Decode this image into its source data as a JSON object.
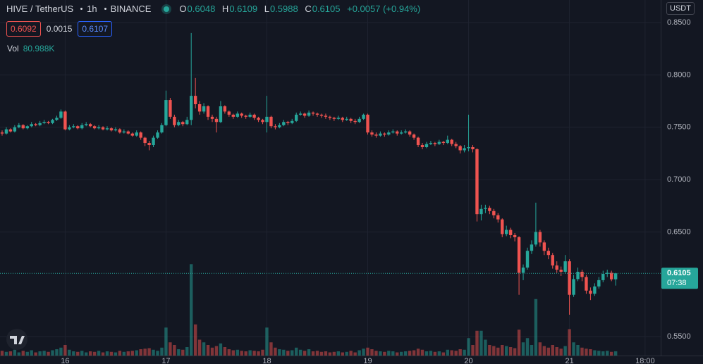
{
  "symbol": "HIVE / TetherUS",
  "interval": "1h",
  "exchange": "BINANCE",
  "ohlc_labels": [
    "O",
    "H",
    "L",
    "C"
  ],
  "change": "+0.0057 (+0.94%)",
  "bid": "0.6092",
  "spread": "0.0015",
  "ask": "0.6107",
  "currency": "USDT",
  "countdown": "07:38",
  "chart_data": {
    "type": "candlestick",
    "up_color": "#26a69a",
    "down_color": "#ef5350",
    "ylim": [
      0.532,
      0.8715
    ],
    "yticks": [
      {
        "value": 0.55,
        "label": "0.5500"
      },
      {
        "value": 0.65,
        "label": "0.6500"
      },
      {
        "value": 0.7,
        "label": "0.7000"
      },
      {
        "value": 0.75,
        "label": "0.7500"
      },
      {
        "value": 0.8,
        "label": "0.8000"
      },
      {
        "value": 0.85,
        "label": "0.8500"
      }
    ],
    "grid": true,
    "categories": [
      null,
      null,
      null,
      null,
      null,
      null,
      null,
      null,
      null,
      null,
      null,
      null,
      null,
      null,
      null,
      "16",
      null,
      null,
      null,
      null,
      null,
      null,
      null,
      null,
      null,
      null,
      null,
      null,
      null,
      null,
      null,
      null,
      null,
      null,
      null,
      null,
      null,
      null,
      null,
      "17",
      null,
      null,
      null,
      null,
      null,
      null,
      null,
      null,
      null,
      null,
      null,
      null,
      null,
      null,
      null,
      null,
      null,
      null,
      null,
      null,
      null,
      null,
      null,
      "18",
      null,
      null,
      null,
      null,
      null,
      null,
      null,
      null,
      null,
      null,
      null,
      null,
      null,
      null,
      null,
      null,
      null,
      null,
      null,
      null,
      null,
      null,
      null,
      "19",
      null,
      null,
      null,
      null,
      null,
      null,
      null,
      null,
      null,
      null,
      null,
      null,
      null,
      null,
      null,
      null,
      null,
      null,
      null,
      null,
      null,
      null,
      null,
      "20",
      null,
      null,
      null,
      null,
      null,
      null,
      null,
      null,
      null,
      null,
      null,
      null,
      null,
      null,
      null,
      null,
      null,
      null,
      null,
      null,
      null,
      null,
      null,
      "21",
      null,
      null,
      null,
      null,
      null,
      null,
      null,
      null,
      null,
      null,
      null,
      null,
      null,
      null,
      null,
      null,
      null,
      "18:00"
    ],
    "candles": [
      [
        0.745,
        0.747,
        0.742,
        0.744
      ],
      [
        0.744,
        0.75,
        0.743,
        0.748
      ],
      [
        0.748,
        0.749,
        0.745,
        0.746
      ],
      [
        0.746,
        0.752,
        0.745,
        0.75
      ],
      [
        0.75,
        0.754,
        0.749,
        0.752
      ],
      [
        0.752,
        0.753,
        0.748,
        0.749
      ],
      [
        0.749,
        0.752,
        0.748,
        0.751
      ],
      [
        0.751,
        0.755,
        0.75,
        0.753
      ],
      [
        0.753,
        0.754,
        0.751,
        0.752
      ],
      [
        0.752,
        0.756,
        0.751,
        0.754
      ],
      [
        0.754,
        0.757,
        0.753,
        0.755
      ],
      [
        0.755,
        0.756,
        0.753,
        0.754
      ],
      [
        0.754,
        0.758,
        0.753,
        0.757
      ],
      [
        0.757,
        0.761,
        0.756,
        0.759
      ],
      [
        0.759,
        0.767,
        0.758,
        0.765
      ],
      [
        0.765,
        0.766,
        0.747,
        0.748
      ],
      [
        0.748,
        0.752,
        0.747,
        0.75
      ],
      [
        0.75,
        0.753,
        0.749,
        0.751
      ],
      [
        0.751,
        0.752,
        0.748,
        0.749
      ],
      [
        0.749,
        0.754,
        0.748,
        0.752
      ],
      [
        0.752,
        0.755,
        0.751,
        0.753
      ],
      [
        0.753,
        0.754,
        0.75,
        0.751
      ],
      [
        0.751,
        0.752,
        0.748,
        0.749
      ],
      [
        0.749,
        0.752,
        0.748,
        0.75
      ],
      [
        0.75,
        0.751,
        0.747,
        0.748
      ],
      [
        0.748,
        0.751,
        0.747,
        0.749
      ],
      [
        0.749,
        0.75,
        0.746,
        0.747
      ],
      [
        0.747,
        0.75,
        0.746,
        0.748
      ],
      [
        0.748,
        0.749,
        0.744,
        0.745
      ],
      [
        0.745,
        0.748,
        0.744,
        0.746
      ],
      [
        0.746,
        0.747,
        0.743,
        0.744
      ],
      [
        0.744,
        0.745,
        0.741,
        0.742
      ],
      [
        0.742,
        0.747,
        0.741,
        0.745
      ],
      [
        0.745,
        0.746,
        0.738,
        0.74
      ],
      [
        0.74,
        0.741,
        0.732,
        0.735
      ],
      [
        0.735,
        0.737,
        0.728,
        0.733
      ],
      [
        0.733,
        0.742,
        0.731,
        0.74
      ],
      [
        0.74,
        0.747,
        0.739,
        0.745
      ],
      [
        0.745,
        0.754,
        0.744,
        0.752
      ],
      [
        0.752,
        0.785,
        0.751,
        0.776
      ],
      [
        0.776,
        0.778,
        0.758,
        0.76
      ],
      [
        0.76,
        0.762,
        0.75,
        0.752
      ],
      [
        0.752,
        0.757,
        0.751,
        0.755
      ],
      [
        0.755,
        0.756,
        0.751,
        0.753
      ],
      [
        0.753,
        0.76,
        0.752,
        0.757
      ],
      [
        0.757,
        0.84,
        0.752,
        0.78
      ],
      [
        0.78,
        0.797,
        0.768,
        0.772
      ],
      [
        0.772,
        0.775,
        0.762,
        0.765
      ],
      [
        0.765,
        0.773,
        0.763,
        0.77
      ],
      [
        0.77,
        0.771,
        0.757,
        0.76
      ],
      [
        0.76,
        0.762,
        0.755,
        0.758
      ],
      [
        0.758,
        0.76,
        0.745,
        0.755
      ],
      [
        0.755,
        0.775,
        0.754,
        0.77
      ],
      [
        0.77,
        0.771,
        0.763,
        0.765
      ],
      [
        0.765,
        0.766,
        0.76,
        0.762
      ],
      [
        0.762,
        0.763,
        0.758,
        0.76
      ],
      [
        0.76,
        0.765,
        0.759,
        0.763
      ],
      [
        0.763,
        0.764,
        0.759,
        0.761
      ],
      [
        0.761,
        0.762,
        0.758,
        0.76
      ],
      [
        0.76,
        0.764,
        0.759,
        0.762
      ],
      [
        0.762,
        0.763,
        0.757,
        0.759
      ],
      [
        0.759,
        0.76,
        0.755,
        0.757
      ],
      [
        0.757,
        0.758,
        0.753,
        0.755
      ],
      [
        0.755,
        0.78,
        0.745,
        0.76
      ],
      [
        0.76,
        0.761,
        0.749,
        0.751
      ],
      [
        0.751,
        0.753,
        0.748,
        0.75
      ],
      [
        0.75,
        0.754,
        0.749,
        0.752
      ],
      [
        0.752,
        0.757,
        0.751,
        0.755
      ],
      [
        0.755,
        0.756,
        0.752,
        0.754
      ],
      [
        0.754,
        0.758,
        0.753,
        0.756
      ],
      [
        0.756,
        0.764,
        0.755,
        0.762
      ],
      [
        0.762,
        0.765,
        0.761,
        0.763
      ],
      [
        0.763,
        0.764,
        0.759,
        0.761
      ],
      [
        0.761,
        0.766,
        0.76,
        0.764
      ],
      [
        0.764,
        0.765,
        0.761,
        0.763
      ],
      [
        0.763,
        0.764,
        0.76,
        0.762
      ],
      [
        0.762,
        0.763,
        0.759,
        0.761
      ],
      [
        0.761,
        0.763,
        0.758,
        0.76
      ],
      [
        0.76,
        0.761,
        0.757,
        0.759
      ],
      [
        0.759,
        0.76,
        0.756,
        0.758
      ],
      [
        0.758,
        0.761,
        0.757,
        0.759
      ],
      [
        0.759,
        0.76,
        0.755,
        0.757
      ],
      [
        0.757,
        0.76,
        0.756,
        0.758
      ],
      [
        0.758,
        0.759,
        0.754,
        0.756
      ],
      [
        0.756,
        0.758,
        0.753,
        0.755
      ],
      [
        0.755,
        0.76,
        0.754,
        0.758
      ],
      [
        0.758,
        0.763,
        0.757,
        0.762
      ],
      [
        0.762,
        0.763,
        0.743,
        0.745
      ],
      [
        0.745,
        0.747,
        0.741,
        0.743
      ],
      [
        0.743,
        0.745,
        0.74,
        0.742
      ],
      [
        0.742,
        0.746,
        0.741,
        0.744
      ],
      [
        0.744,
        0.745,
        0.741,
        0.743
      ],
      [
        0.743,
        0.747,
        0.742,
        0.745
      ],
      [
        0.745,
        0.748,
        0.744,
        0.746
      ],
      [
        0.746,
        0.747,
        0.742,
        0.744
      ],
      [
        0.744,
        0.747,
        0.743,
        0.745
      ],
      [
        0.745,
        0.748,
        0.744,
        0.746
      ],
      [
        0.746,
        0.747,
        0.741,
        0.743
      ],
      [
        0.743,
        0.744,
        0.738,
        0.74
      ],
      [
        0.74,
        0.741,
        0.731,
        0.733
      ],
      [
        0.733,
        0.735,
        0.729,
        0.731
      ],
      [
        0.731,
        0.736,
        0.73,
        0.734
      ],
      [
        0.734,
        0.737,
        0.733,
        0.735
      ],
      [
        0.735,
        0.736,
        0.732,
        0.734
      ],
      [
        0.734,
        0.738,
        0.733,
        0.736
      ],
      [
        0.736,
        0.737,
        0.733,
        0.735
      ],
      [
        0.735,
        0.742,
        0.734,
        0.738
      ],
      [
        0.738,
        0.739,
        0.732,
        0.734
      ],
      [
        0.734,
        0.736,
        0.73,
        0.732
      ],
      [
        0.732,
        0.733,
        0.725,
        0.728
      ],
      [
        0.728,
        0.733,
        0.726,
        0.73
      ],
      [
        0.73,
        0.762,
        0.727,
        0.731
      ],
      [
        0.731,
        0.733,
        0.726,
        0.729
      ],
      [
        0.729,
        0.73,
        0.66,
        0.667
      ],
      [
        0.667,
        0.676,
        0.661,
        0.672
      ],
      [
        0.672,
        0.676,
        0.668,
        0.673
      ],
      [
        0.673,
        0.675,
        0.667,
        0.67
      ],
      [
        0.67,
        0.672,
        0.663,
        0.666
      ],
      [
        0.666,
        0.668,
        0.659,
        0.662
      ],
      [
        0.662,
        0.663,
        0.645,
        0.648
      ],
      [
        0.648,
        0.656,
        0.646,
        0.652
      ],
      [
        0.652,
        0.654,
        0.644,
        0.647
      ],
      [
        0.647,
        0.649,
        0.641,
        0.645
      ],
      [
        0.645,
        0.646,
        0.59,
        0.611
      ],
      [
        0.611,
        0.619,
        0.604,
        0.616
      ],
      [
        0.616,
        0.635,
        0.614,
        0.632
      ],
      [
        0.632,
        0.642,
        0.629,
        0.638
      ],
      [
        0.638,
        0.678,
        0.636,
        0.65
      ],
      [
        0.65,
        0.652,
        0.636,
        0.64
      ],
      [
        0.64,
        0.642,
        0.628,
        0.632
      ],
      [
        0.632,
        0.635,
        0.624,
        0.628
      ],
      [
        0.628,
        0.63,
        0.615,
        0.618
      ],
      [
        0.618,
        0.622,
        0.611,
        0.614
      ],
      [
        0.614,
        0.617,
        0.608,
        0.612
      ],
      [
        0.612,
        0.628,
        0.61,
        0.622
      ],
      [
        0.622,
        0.624,
        0.571,
        0.59
      ],
      [
        0.59,
        0.609,
        0.588,
        0.605
      ],
      [
        0.605,
        0.616,
        0.603,
        0.612
      ],
      [
        0.612,
        0.614,
        0.603,
        0.607
      ],
      [
        0.607,
        0.609,
        0.591,
        0.594
      ],
      [
        0.594,
        0.597,
        0.585,
        0.591
      ],
      [
        0.591,
        0.601,
        0.589,
        0.598
      ],
      [
        0.598,
        0.607,
        0.596,
        0.604
      ],
      [
        0.604,
        0.613,
        0.602,
        0.61
      ],
      [
        0.61,
        0.614,
        0.607,
        0.611
      ],
      [
        0.611,
        0.613,
        0.603,
        0.6048
      ],
      [
        0.6048,
        0.6109,
        0.5988,
        0.6105
      ],
      null,
      null,
      null,
      null,
      null,
      null,
      null
    ],
    "volume": {
      "name": "Vol",
      "vlim": [
        0,
        2000000
      ],
      "last_label": "80.988K",
      "values": [
        90000,
        70000,
        80000,
        110000,
        60000,
        90000,
        70000,
        100000,
        60000,
        80000,
        90000,
        70000,
        100000,
        120000,
        150000,
        200000,
        110000,
        80000,
        70000,
        90000,
        60000,
        80000,
        70000,
        90000,
        60000,
        80000,
        70000,
        60000,
        90000,
        70000,
        80000,
        90000,
        100000,
        120000,
        130000,
        140000,
        110000,
        90000,
        150000,
        530000,
        250000,
        200000,
        120000,
        110000,
        160000,
        1730000,
        590000,
        300000,
        250000,
        200000,
        150000,
        180000,
        230000,
        160000,
        120000,
        100000,
        110000,
        90000,
        80000,
        100000,
        90000,
        80000,
        110000,
        530000,
        250000,
        150000,
        120000,
        110000,
        90000,
        100000,
        150000,
        110000,
        90000,
        120000,
        80000,
        90000,
        70000,
        80000,
        60000,
        70000,
        80000,
        60000,
        70000,
        90000,
        60000,
        100000,
        130000,
        150000,
        120000,
        90000,
        80000,
        70000,
        90000,
        80000,
        60000,
        70000,
        80000,
        90000,
        100000,
        130000,
        110000,
        80000,
        90000,
        70000,
        80000,
        60000,
        110000,
        100000,
        90000,
        120000,
        110000,
        330000,
        200000,
        470000,
        470000,
        300000,
        200000,
        180000,
        150000,
        200000,
        180000,
        160000,
        140000,
        490000,
        250000,
        330000,
        200000,
        1070000,
        250000,
        180000,
        150000,
        200000,
        160000,
        130000,
        180000,
        500000,
        250000,
        200000,
        150000,
        130000,
        120000,
        100000,
        90000,
        80000,
        90000,
        70000,
        80988,
        null,
        null,
        null,
        null,
        null,
        null,
        null
      ]
    }
  }
}
